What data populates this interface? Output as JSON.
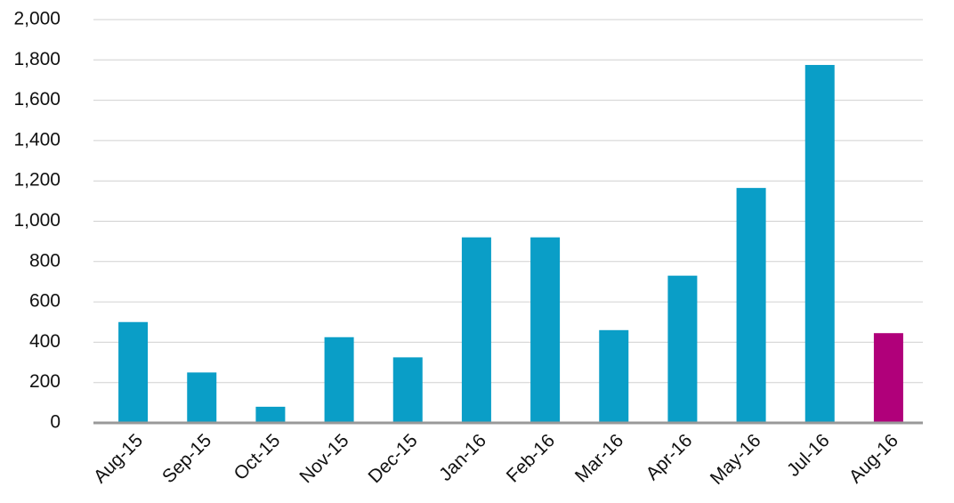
{
  "chart_data": {
    "type": "bar",
    "categories": [
      "Aug-15",
      "Sep-15",
      "Oct-15",
      "Nov-15",
      "Dec-15",
      "Jan-16",
      "Feb-16",
      "Mar-16",
      "Apr-16",
      "May-16",
      "Jul-16",
      "Aug-16"
    ],
    "values": [
      500,
      250,
      80,
      425,
      325,
      920,
      920,
      460,
      730,
      1165,
      1775,
      445
    ],
    "colors": [
      "#0a9ec7",
      "#0a9ec7",
      "#0a9ec7",
      "#0a9ec7",
      "#0a9ec7",
      "#0a9ec7",
      "#0a9ec7",
      "#0a9ec7",
      "#0a9ec7",
      "#0a9ec7",
      "#0a9ec7",
      "#b0007a"
    ],
    "ylim": [
      0,
      2000
    ],
    "yticks": [
      0,
      200,
      400,
      600,
      800,
      {
        "value": 1000,
        "label": "1,000"
      },
      {
        "value": 1200,
        "label": "1,200"
      },
      {
        "value": 1400,
        "label": "1,400"
      },
      {
        "value": 1600,
        "label": "1,600"
      },
      {
        "value": 1800,
        "label": "1,800"
      },
      {
        "value": 2000,
        "label": "2,000"
      }
    ],
    "grid": true
  }
}
